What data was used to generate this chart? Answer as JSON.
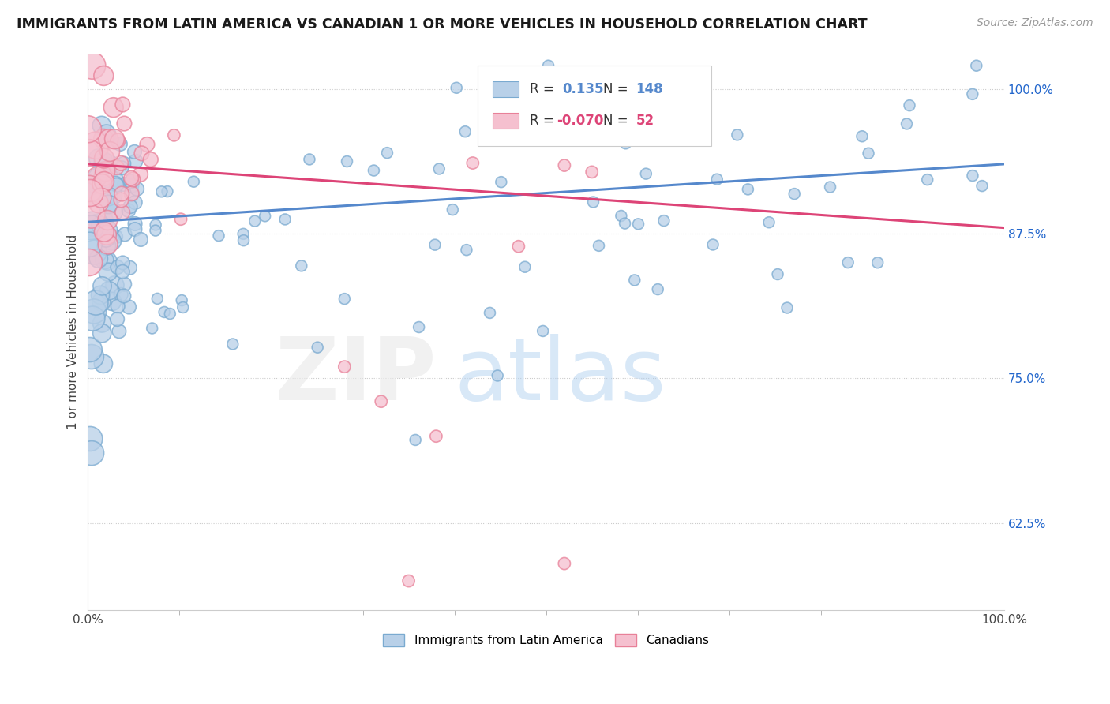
{
  "title": "IMMIGRANTS FROM LATIN AMERICA VS CANADIAN 1 OR MORE VEHICLES IN HOUSEHOLD CORRELATION CHART",
  "source": "Source: ZipAtlas.com",
  "ylabel": "1 or more Vehicles in Household",
  "xlim": [
    0.0,
    100.0
  ],
  "ylim": [
    55.0,
    103.0
  ],
  "yticks": [
    62.5,
    75.0,
    87.5,
    100.0
  ],
  "ytick_labels": [
    "62.5%",
    "75.0%",
    "87.5%",
    "100.0%"
  ],
  "xticks": [
    0,
    100
  ],
  "xtick_labels": [
    "0.0%",
    "100.0%"
  ],
  "blue_R": 0.135,
  "blue_N": 148,
  "pink_R": -0.07,
  "pink_N": 52,
  "blue_color": "#b8d0e8",
  "blue_edge_color": "#7aaad0",
  "pink_color": "#f5c0cf",
  "pink_edge_color": "#e88098",
  "blue_line_color": "#5588cc",
  "pink_line_color": "#dd4477",
  "legend_blue_label": "Immigrants from Latin America",
  "legend_pink_label": "Canadians",
  "blue_line_y0": 88.5,
  "blue_line_y1": 93.5,
  "pink_line_y0": 93.5,
  "pink_line_y1": 88.0,
  "watermark_zip_color": "#e0e0e0",
  "watermark_atlas_color": "#aaccee",
  "grid_color": "#cccccc",
  "spine_color": "#cccccc"
}
